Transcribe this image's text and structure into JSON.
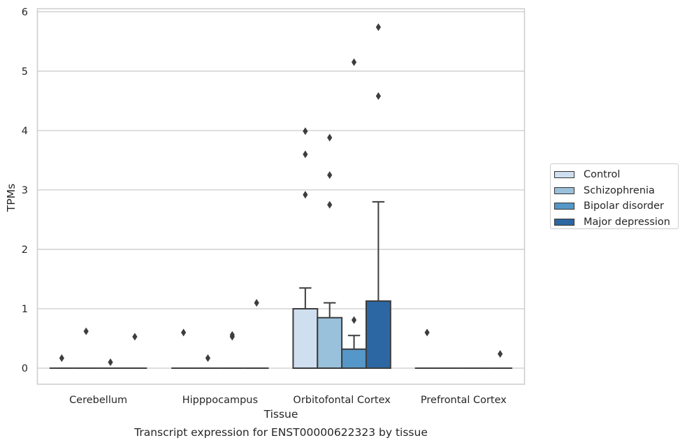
{
  "chart_data": {
    "type": "box",
    "title": "",
    "xlabel": "Tissue",
    "ylabel": "TPMs",
    "caption": "Transcript expression for ENST00000622323 by tissue",
    "categories": [
      "Cerebellum",
      "Hipppocampus",
      "Orbitofontal Cortex",
      "Prefrontal Cortex"
    ],
    "ylim": [
      -0.27,
      6.05
    ],
    "yticks": [
      0,
      1,
      2,
      3,
      4,
      5,
      6
    ],
    "grid": "horizontal",
    "legend_position": "right",
    "series": [
      {
        "name": "Control",
        "color": "#cfdff0",
        "boxes": [
          {
            "category": "Cerebellum",
            "q1": 0,
            "median": 0,
            "q3": 0,
            "whisker_low": 0,
            "whisker_high": 0,
            "outliers": [
              0.17
            ]
          },
          {
            "category": "Hipppocampus",
            "q1": 0,
            "median": 0,
            "q3": 0,
            "whisker_low": 0,
            "whisker_high": 0,
            "outliers": [
              0.6
            ]
          },
          {
            "category": "Orbitofontal Cortex",
            "q1": 0,
            "median": 0,
            "q3": 1.0,
            "whisker_low": 0,
            "whisker_high": 1.35,
            "outliers": [
              2.92,
              3.6,
              3.99
            ]
          },
          {
            "category": "Prefrontal Cortex",
            "q1": 0,
            "median": 0,
            "q3": 0,
            "whisker_low": 0,
            "whisker_high": 0,
            "outliers": [
              0.6
            ]
          }
        ]
      },
      {
        "name": "Schizophrenia",
        "color": "#9ac1db",
        "boxes": [
          {
            "category": "Cerebellum",
            "q1": 0,
            "median": 0,
            "q3": 0,
            "whisker_low": 0,
            "whisker_high": 0,
            "outliers": [
              0.62
            ]
          },
          {
            "category": "Hipppocampus",
            "q1": 0,
            "median": 0,
            "q3": 0,
            "whisker_low": 0,
            "whisker_high": 0,
            "outliers": [
              0.17
            ]
          },
          {
            "category": "Orbitofontal Cortex",
            "q1": 0,
            "median": 0,
            "q3": 0.85,
            "whisker_low": 0,
            "whisker_high": 1.1,
            "outliers": [
              2.75,
              3.25,
              3.88
            ]
          },
          {
            "category": "Prefrontal Cortex",
            "q1": 0,
            "median": 0,
            "q3": 0,
            "whisker_low": 0,
            "whisker_high": 0,
            "outliers": []
          }
        ]
      },
      {
        "name": "Bipolar disorder",
        "color": "#5597c8",
        "boxes": [
          {
            "category": "Cerebellum",
            "q1": 0,
            "median": 0,
            "q3": 0,
            "whisker_low": 0,
            "whisker_high": 0,
            "outliers": [
              0.1
            ]
          },
          {
            "category": "Hipppocampus",
            "q1": 0,
            "median": 0,
            "q3": 0,
            "whisker_low": 0,
            "whisker_high": 0,
            "outliers": [
              0.53,
              0.56
            ]
          },
          {
            "category": "Orbitofontal Cortex",
            "q1": 0,
            "median": 0,
            "q3": 0.32,
            "whisker_low": 0,
            "whisker_high": 0.55,
            "outliers": [
              0.81,
              5.15
            ]
          },
          {
            "category": "Prefrontal Cortex",
            "q1": 0,
            "median": 0,
            "q3": 0,
            "whisker_low": 0,
            "whisker_high": 0,
            "outliers": []
          }
        ]
      },
      {
        "name": "Major depression",
        "color": "#2c67a3",
        "boxes": [
          {
            "category": "Cerebellum",
            "q1": 0,
            "median": 0,
            "q3": 0,
            "whisker_low": 0,
            "whisker_high": 0,
            "outliers": [
              0.53
            ]
          },
          {
            "category": "Hipppocampus",
            "q1": 0,
            "median": 0,
            "q3": 0,
            "whisker_low": 0,
            "whisker_high": 0,
            "outliers": [
              1.1
            ]
          },
          {
            "category": "Orbitofontal Cortex",
            "q1": 0,
            "median": 0,
            "q3": 1.13,
            "whisker_low": 0,
            "whisker_high": 2.8,
            "outliers": [
              4.58,
              5.74
            ]
          },
          {
            "category": "Prefrontal Cortex",
            "q1": 0,
            "median": 0,
            "q3": 0,
            "whisker_low": 0,
            "whisker_high": 0,
            "outliers": [
              0.24
            ]
          }
        ]
      }
    ]
  }
}
